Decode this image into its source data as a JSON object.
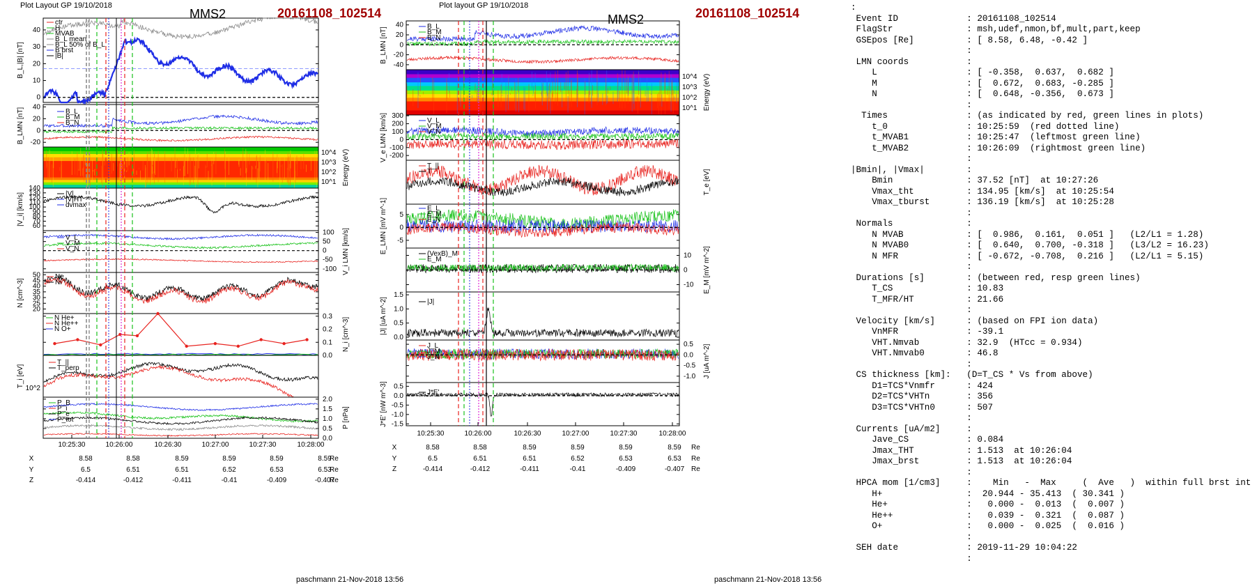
{
  "left_panel": {
    "header_left": "Plot Layout GP 19/10/2018",
    "probe": "MMS2",
    "event": "20161108_102514",
    "signoff": "paschmann 21-Nov-2018 13:56"
  },
  "right_panel": {
    "header_left": "Plot layout GP 19/10/2018",
    "probe": "MMS2",
    "event": "20161108_102514",
    "signoff": "paschmann 21-Nov-2018 13:56"
  },
  "time_ticks": [
    "10:25:30",
    "10:26:00",
    "10:26:30",
    "10:27:00",
    "10:27:30",
    "10:28:00"
  ],
  "position_table": {
    "rows": [
      {
        "label": "X",
        "values": [
          "8.58",
          "8.58",
          "8.59",
          "8.59",
          "8.59",
          "8.59"
        ],
        "unit": "Re"
      },
      {
        "label": "Y",
        "values": [
          "6.5",
          "6.51",
          "6.51",
          "6.52",
          "6.53",
          "6.53"
        ],
        "unit": "Re"
      },
      {
        "label": "Z",
        "values": [
          "-0.414",
          "-0.412",
          "-0.411",
          "-0.41",
          "-0.409",
          "-0.407"
        ],
        "unit": "Re"
      }
    ]
  },
  "colors": {
    "red": "#e8231f",
    "green": "#19c21a",
    "blue": "#1f2ee6",
    "black": "#000000",
    "gray": "#8c8c8c",
    "magenta": "#e02bd6",
    "event_title": "#a00000"
  },
  "info_lines": [
    ":",
    " Event ID             : 20161108_102514",
    " FlagStr              : msh,udef,nmon,bf,mult,part,keep",
    " GSEpos [Re]          : [ 8.58, 6.48, -0.42 ]",
    "                      :",
    " LMN coords           :",
    "    L                 : [ -0.358,  0.637,  0.682 ]",
    "    M                 : [  0.672,  0.683, -0.285 ]",
    "    N                 : [  0.648, -0.356,  0.673 ]",
    "                      :",
    "  Times               : (as indicated by red, green lines in plots)",
    "    t_0               : 10:25:59  (red dotted line)",
    "    t_MVAB1           : 10:25:47  (leftmost green line)",
    "    t_MVAB2           : 10:26:09  (rightmost green line)",
    "                      :",
    "|Bmin|, |Vmax|        :",
    "    Bmin              : 37.52 [nT]  at 10:27:26",
    "    Vmax_tht          : 134.95 [km/s]  at 10:25:54",
    "    Vmax_tburst       : 136.19 [km/s]  at 10:25:28",
    "                      :",
    " Normals              :",
    "    N MVAB            : [  0.986,  0.161,  0.051 ]   (L2/L1 = 1.28)",
    "    N MVAB0           : [  0.640,  0.700, -0.318 ]   (L3/L2 = 16.23)",
    "    N MFR             : [ -0.672, -0.708,  0.216 ]   (L2/L1 = 5.15)",
    "                      :",
    " Durations [s]        : (between red, resp green lines)",
    "    T_CS              : 10.83",
    "    T_MFR/HT          : 21.66",
    "                      :",
    " Velocity [km/s]      : (based on FPI ion data)",
    "    VnMFR             : -39.1",
    "    VHT.Nmvab         : 32.9  (HTcc = 0.934)",
    "    VHT.Nmvab0        : 46.8",
    "                      :",
    " CS thickness [km]:   (D=T_CS * Vs from above)",
    "    D1=TCS*Vnmfr      : 424",
    "    D2=TCS*VHTn       : 356",
    "    D3=TCS*VHTn0      : 507",
    "                      :",
    " Currents [uA/m2]     :",
    "    Jave_CS           : 0.084",
    "    Jmax_THT          : 1.513  at 10:26:04",
    "    Jmax_brst         : 1.513  at 10:26:04",
    "                      :",
    " HPCA mom [1/cm3]     :    Min   -  Max     (  Ave   )  within full brst int",
    "    H+                :  20.944 - 35.413  ( 30.341 )",
    "    He+               :   0.000 -  0.013  (  0.007 )",
    "    He++              :   0.039 -  0.321  (  0.087 )",
    "    O+                :   0.000 -  0.025  (  0.016 )",
    "                      :",
    " SEH date             : 2019-11-29 10:04:22",
    "                      :"
  ],
  "chart_data": [
    {
      "type": "line",
      "title": "MMS2",
      "panels": [
        {
          "ylabel": "B_L,|B| [nT]",
          "yticks": [
            "0",
            "10",
            "20",
            "30",
            "40"
          ],
          "ylim": [
            -3,
            47
          ],
          "legend": [
            "ctr",
            "H",
            "MVAB",
            "B_L mean",
            "B_L 50% of B_L",
            "B brst",
            "|B|"
          ]
        },
        {
          "ylabel": "B_LMN [nT]",
          "yticks": [
            "-20",
            "0",
            "20",
            "40"
          ],
          "ylim": [
            -28,
            44
          ],
          "legend": [
            "B_L",
            "B_M",
            "B_N"
          ]
        },
        {
          "ylabel": "Energy (eV)",
          "yticks": [
            "10^1",
            "10^2",
            "10^3",
            "10^4"
          ],
          "spectrogram": true
        },
        {
          "ylabel": "|V_i| [km/s]",
          "yticks": [
            "60",
            "70",
            "80",
            "90",
            "100",
            "110",
            "120",
            "130",
            "140"
          ],
          "ylim": [
            50,
            140
          ],
          "legend": [
            "|V|",
            "|V|HT",
            "dvmax"
          ]
        },
        {
          "ylabel": "V_i LMN [km/s]",
          "yticks": [
            "-100",
            "-50",
            "0",
            "50",
            "100"
          ],
          "ylim": [
            -120,
            110
          ],
          "legend": [
            "V_L",
            "V_M",
            "V_N"
          ]
        },
        {
          "ylabel": "N [cm^-3]",
          "yticks": [
            "20",
            "25",
            "30",
            "35",
            "40",
            "45",
            "50"
          ],
          "ylim": [
            16,
            52
          ],
          "legend": [
            "Ne",
            "Ni"
          ]
        },
        {
          "ylabel": "N_i [cm^-3]",
          "yticks": [
            "0.0",
            "0.1",
            "0.2",
            "0.3"
          ],
          "ylim": [
            0,
            0.32
          ],
          "legend": [
            "N He+",
            "N He++",
            "N O+"
          ],
          "he_pp_times_s": [
            10,
            30,
            50,
            67,
            82,
            100,
            125,
            150,
            170,
            190,
            210,
            230
          ],
          "he_pp_values": [
            0.09,
            0.12,
            0.08,
            0.16,
            0.15,
            0.32,
            0.07,
            0.09,
            0.07,
            0.12,
            0.09,
            0.12
          ]
        },
        {
          "ylabel": "T_i [eV]",
          "yticks": [
            "10^2"
          ],
          "legend": [
            "T_||",
            "T_perp"
          ]
        },
        {
          "ylabel": "P [nPa]",
          "yticks": [
            "0.0",
            "0.5",
            "1.0",
            "1.5",
            "2.0"
          ],
          "ylim": [
            0,
            2.1
          ],
          "legend": [
            "P_B",
            "P_i",
            "P_e",
            "P_tot"
          ]
        }
      ],
      "x_ticks": [
        "10:25:30",
        "10:26:00",
        "10:26:30",
        "10:27:00",
        "10:27:30",
        "10:28:00"
      ],
      "events": {
        "t_0": "10:25:59",
        "t_MVAB1": "10:25:47",
        "t_MVAB2": "10:26:09"
      }
    },
    {
      "type": "line",
      "title": "MMS2",
      "panels": [
        {
          "ylabel": "B_LMN [nT]",
          "yticks": [
            "-40",
            "-20",
            "0",
            "20",
            "40"
          ],
          "ylim": [
            -50,
            48
          ],
          "legend": [
            "B_L",
            "B_M",
            "B_N"
          ]
        },
        {
          "ylabel": "Energy (eV)",
          "yticks": [
            "10^1",
            "10^2",
            "10^3",
            "10^4"
          ],
          "spectrogram": true
        },
        {
          "ylabel": "V_e LMN [km/s]",
          "yticks": [
            "-200",
            "-100",
            "0",
            "100",
            "200",
            "300"
          ],
          "ylim": [
            -260,
            310
          ],
          "legend": [
            "V_L",
            "V_M",
            "V_N"
          ]
        },
        {
          "ylabel": "T_e [eV]",
          "legend": [
            "T_||",
            "T"
          ]
        },
        {
          "ylabel": "E_LMN [mV m^-1]",
          "yticks": [
            "-5",
            "0",
            "5"
          ],
          "ylim": [
            -8,
            9
          ],
          "legend": [
            "E_L",
            "E_M",
            "E_N"
          ]
        },
        {
          "ylabel": "E_M [mV m^-2]",
          "yticks": [
            "-10",
            "0",
            "10"
          ],
          "ylim": [
            -15,
            15
          ],
          "legend": [
            "(VexB)_M",
            "E_M"
          ]
        },
        {
          "ylabel": "|J| [uA m^-2]",
          "yticks": [
            "0.0",
            "0.5",
            "1.0",
            "1.5"
          ],
          "ylim": [
            -0.1,
            1.6
          ],
          "legend": [
            "|J|"
          ]
        },
        {
          "ylabel": "J [uA m^-2]",
          "yticks": [
            "-1.0",
            "-0.5",
            "0.0",
            "0.5"
          ],
          "ylim": [
            -1.3,
            0.7
          ],
          "legend": [
            "J_L",
            "J_M",
            "J_N"
          ]
        },
        {
          "ylabel": "J*E' [nW m^-3]",
          "yticks": [
            "-1.5",
            "-1.0",
            "-0.5",
            "0.0",
            "0.5"
          ],
          "ylim": [
            -1.6,
            0.7
          ],
          "legend": [
            "J*E'"
          ]
        }
      ],
      "x_ticks": [
        "10:25:30",
        "10:26:00",
        "10:26:30",
        "10:27:00",
        "10:27:30",
        "10:28:00"
      ],
      "events": {
        "t_0": "10:25:59",
        "t_MVAB1": "10:25:47",
        "t_MVAB2": "10:26:09"
      }
    }
  ]
}
